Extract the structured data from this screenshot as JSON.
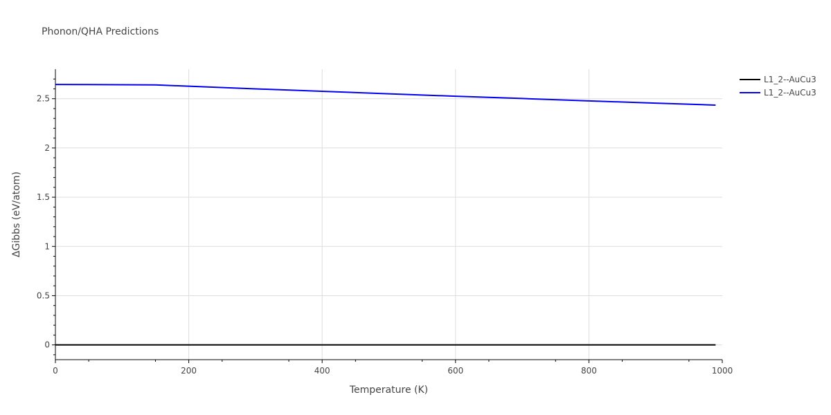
{
  "chart_data": {
    "type": "line",
    "title": "Phonon/QHA Predictions",
    "xlabel": "Temperature (K)",
    "ylabel": "ΔGibbs (eV/atom)",
    "xlim": [
      0,
      1000
    ],
    "ylim": [
      -0.15,
      2.8
    ],
    "x_ticks": [
      0,
      200,
      400,
      600,
      800,
      1000
    ],
    "x_tick_labels": [
      "0",
      "200",
      "400",
      "600",
      "800",
      "1000"
    ],
    "y_ticks": [
      0,
      0.5,
      1,
      1.5,
      2,
      2.5
    ],
    "y_tick_labels": [
      "0",
      "0.5",
      "1",
      "1.5",
      "2",
      "2.5"
    ],
    "grid": true,
    "legend_position": "top-right",
    "series": [
      {
        "name": "L1_2--AuCu3",
        "color": "#000000",
        "x": [
          0,
          100,
          200,
          300,
          400,
          500,
          600,
          700,
          800,
          900,
          990
        ],
        "y": [
          0,
          0,
          0,
          0,
          0,
          0,
          0,
          0,
          0,
          0,
          0
        ]
      },
      {
        "name": "L1_2--AuCu3",
        "color": "#0000ee",
        "x": [
          0,
          150,
          200,
          300,
          400,
          500,
          600,
          700,
          800,
          900,
          990
        ],
        "y": [
          2.645,
          2.64,
          2.627,
          2.6,
          2.575,
          2.55,
          2.525,
          2.502,
          2.478,
          2.455,
          2.435
        ]
      }
    ]
  }
}
